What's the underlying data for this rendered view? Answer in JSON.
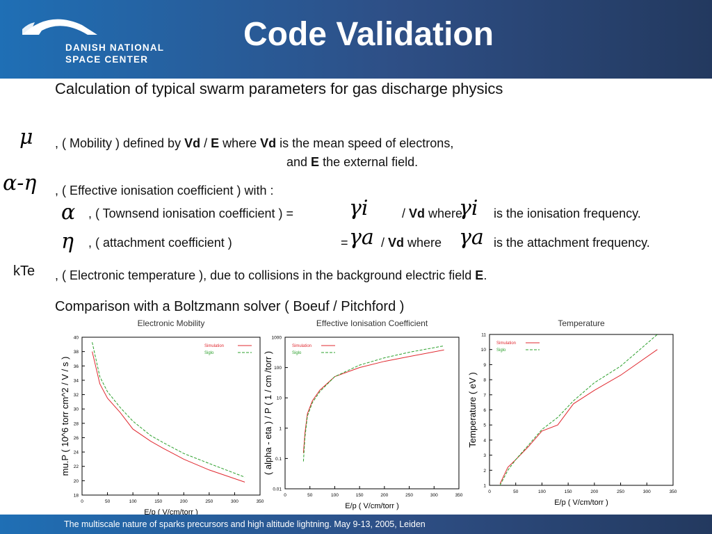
{
  "header": {
    "logo_line1": "DANISH NATIONAL",
    "logo_line2": "SPACE CENTER",
    "title": "Code Validation"
  },
  "intro": "Calculation of typical swarm parameters for gas discharge physics",
  "mobility": {
    "a": ", ( Mobility ) defined by ",
    "b": "Vd",
    "c": " / ",
    "d": "E",
    "e": " where ",
    "f": "Vd",
    "g": " is the mean speed of electrons,",
    "h": "and ",
    "i": "E",
    "j": " the external field."
  },
  "eff": {
    "text": ", ( Effective ionisation coefficient ) with  :"
  },
  "town": {
    "a": ", ( Townsend ionisation coefficient ) =",
    "b": "/ ",
    "c": "Vd",
    "d": " where",
    "e": "is the ionisation frequency."
  },
  "att": {
    "a": ", ( attachment coefficient )",
    "eq": "=",
    "b": "/ ",
    "c": "Vd",
    "d": " where",
    "e": "is the attachment frequency."
  },
  "kte": {
    "label": "kTe",
    "a": ", ( Electronic temperature ), due to collisions in the background electric field ",
    "b": "E",
    "c": "."
  },
  "comparison": "Comparison with a Boltzmann solver ( Boeuf / Pitchford )",
  "footer": "The multiscale nature of sparks precursors and high altitude lightning. May 9-13, 2005, Leiden",
  "colors": {
    "simulation": "#e0282f",
    "siglo": "#2ca02c",
    "header_left": "#1f6fb5",
    "header_right": "#23395f"
  },
  "chart_data": [
    {
      "type": "line",
      "title": "Electronic Mobility",
      "xlabel": "E/p ( V/cm/torr )",
      "ylabel": "mu.P ( 10^6 torr cm^2 / V / s )",
      "xlim": [
        0,
        350
      ],
      "ylim": [
        18,
        40
      ],
      "xticks": [
        "0",
        "50",
        "100",
        "150",
        "200",
        "250",
        "300",
        "350"
      ],
      "yticks": [
        "18",
        "20",
        "22",
        "24",
        "26",
        "28",
        "30",
        "32",
        "34",
        "36",
        "38",
        "40"
      ],
      "legend": "top-right",
      "series": [
        {
          "name": "Simulation",
          "x": [
            20,
            35,
            50,
            75,
            100,
            135,
            160,
            200,
            250,
            320
          ],
          "y": [
            38,
            33.5,
            31.5,
            29.5,
            27.2,
            25.5,
            24.5,
            23,
            21.5,
            19.8
          ]
        },
        {
          "name": "Siglo",
          "x": [
            20,
            35,
            50,
            75,
            100,
            135,
            160,
            200,
            250,
            320
          ],
          "y": [
            39.3,
            34.5,
            32.4,
            30.2,
            28.3,
            26.3,
            25.3,
            23.8,
            22.4,
            20.5
          ]
        }
      ]
    },
    {
      "type": "line",
      "title": "Effective Ionisation Coefficient",
      "xlabel": "E/p ( V/cm/torr )",
      "ylabel": "( alpha - eta ) / P ( 1 / cm /torr )",
      "xlim": [
        0,
        350
      ],
      "ylim": [
        0.01,
        1000
      ],
      "yscale": "log",
      "xticks": [
        "0",
        "50",
        "100",
        "150",
        "200",
        "250",
        "300",
        "350"
      ],
      "yticks": [
        "0.01",
        "0.1",
        "1",
        "10",
        "100",
        "1000"
      ],
      "legend": "top-left",
      "series": [
        {
          "name": "Simulation",
          "x": [
            37,
            40,
            45,
            55,
            70,
            100,
            150,
            200,
            250,
            320
          ],
          "y": [
            0.15,
            0.7,
            3,
            8,
            18,
            50,
            100,
            160,
            230,
            380
          ]
        },
        {
          "name": "Siglo",
          "x": [
            37,
            40,
            45,
            55,
            70,
            100,
            150,
            200,
            250,
            320
          ],
          "y": [
            0.08,
            0.5,
            2.5,
            7,
            16,
            50,
            120,
            210,
            320,
            520
          ]
        }
      ]
    },
    {
      "type": "line",
      "title": "Temperature",
      "xlabel": "E/p ( V/cm/torr )",
      "ylabel": "Temperature ( eV )",
      "xlim": [
        0,
        350
      ],
      "ylim": [
        1,
        11
      ],
      "xticks": [
        "0",
        "50",
        "100",
        "150",
        "200",
        "250",
        "300",
        "350"
      ],
      "yticks": [
        "1",
        "2",
        "3",
        "4",
        "5",
        "6",
        "7",
        "8",
        "9",
        "10",
        "11"
      ],
      "legend": "top-left",
      "series": [
        {
          "name": "Simulation",
          "x": [
            20,
            35,
            50,
            75,
            100,
            130,
            160,
            200,
            250,
            320
          ],
          "y": [
            1.1,
            2.2,
            2.7,
            3.6,
            4.6,
            5,
            6.4,
            7.3,
            8.3,
            10
          ]
        },
        {
          "name": "Siglo",
          "x": [
            20,
            35,
            50,
            75,
            100,
            130,
            160,
            200,
            250,
            320
          ],
          "y": [
            1.0,
            2.0,
            2.7,
            3.7,
            4.7,
            5.5,
            6.6,
            7.8,
            8.9,
            11
          ]
        }
      ]
    }
  ]
}
